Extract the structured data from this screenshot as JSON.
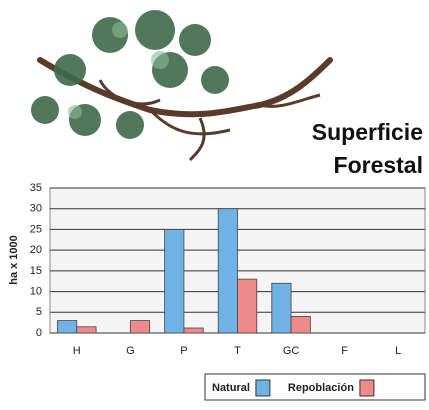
{
  "chart_data": {
    "type": "bar",
    "title": "Superficie Forestal",
    "y_label": "ha x 1000",
    "categories": [
      "H",
      "G",
      "P",
      "T",
      "GC",
      "F",
      "L"
    ],
    "series": [
      {
        "name": "Natural",
        "color": "#6fb3e6",
        "values": [
          3,
          0,
          25,
          30,
          12,
          0,
          0
        ]
      },
      {
        "name": "Repoblación",
        "color": "#f08a8a",
        "values": [
          1.5,
          3,
          1.2,
          13,
          4,
          0,
          0
        ]
      }
    ],
    "ylim": [
      0,
      35
    ],
    "yticks": [
      0,
      5,
      10,
      15,
      20,
      25,
      30,
      35
    ],
    "grid": true
  }
}
